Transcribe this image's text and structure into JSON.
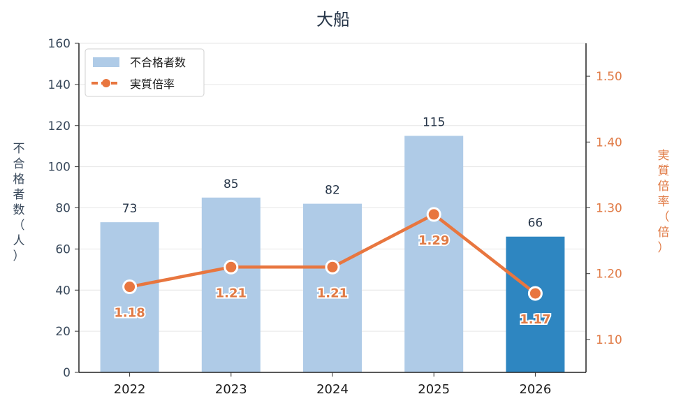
{
  "chart_data": {
    "type": "bar",
    "title": "大船",
    "categories": [
      "2022",
      "2023",
      "2024",
      "2025",
      "2026"
    ],
    "series": [
      {
        "name": "不合格者数",
        "type": "bar",
        "axis": "left",
        "values": [
          73,
          85,
          82,
          115,
          66
        ],
        "color": "#afcbe7",
        "highlight_color": "#2e86c1",
        "highlight_index": 4
      },
      {
        "name": "実質倍率",
        "type": "line",
        "axis": "right",
        "values": [
          1.18,
          1.21,
          1.21,
          1.29,
          1.17
        ],
        "color": "#e8763f"
      }
    ],
    "ylabel": "不合格者数（人）",
    "y2label": "実質倍率（倍）",
    "ylim": [
      0,
      160
    ],
    "yticks": [
      0,
      20,
      40,
      60,
      80,
      100,
      120,
      140,
      160
    ],
    "y2lim": [
      1.05,
      1.55
    ],
    "y2ticks": [
      "1.10",
      "1.20",
      "1.30",
      "1.40",
      "1.50"
    ],
    "grid": true,
    "legend": "top-left"
  }
}
